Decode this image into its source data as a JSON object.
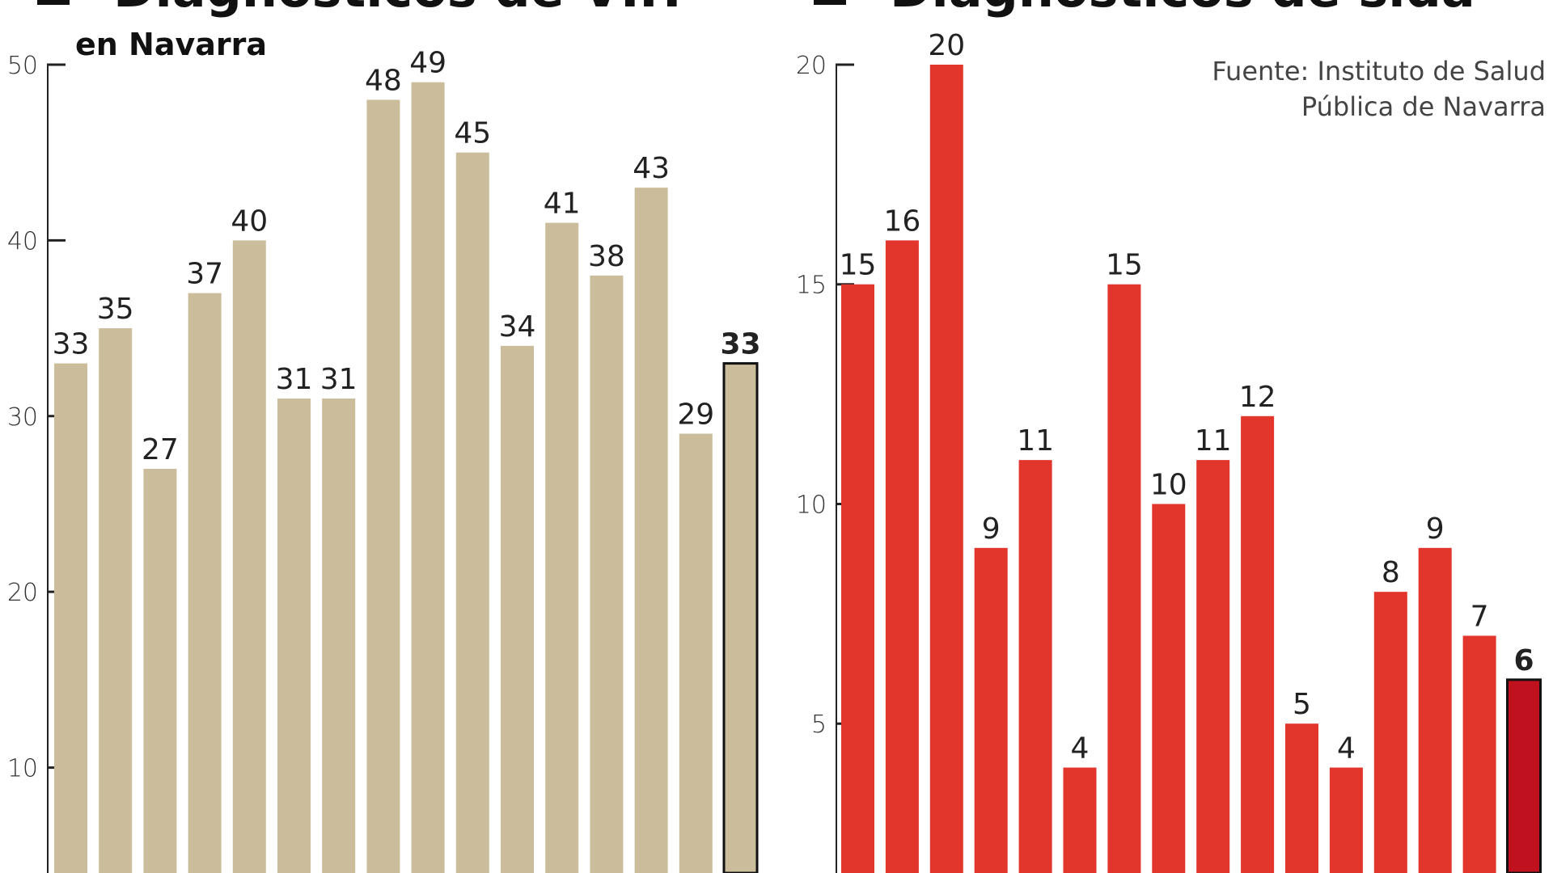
{
  "chart_data": [
    {
      "type": "bar",
      "title": "Diagnósticos de VIH",
      "subtitle": "en Navarra",
      "values": [
        33,
        35,
        27,
        37,
        40,
        31,
        31,
        48,
        49,
        45,
        34,
        41,
        38,
        43,
        29,
        33
      ],
      "color": "#cbbc9b",
      "highlight_color": "#cbbc9b",
      "highlight_stroke": "#111111",
      "ylim": [
        4,
        50
      ],
      "yticks": [
        10,
        20,
        30,
        40,
        50
      ]
    },
    {
      "type": "bar",
      "title": "Diagnósticos de sida",
      "source": [
        "Fuente: Instituto de Salud",
        "Pública de Navarra"
      ],
      "values": [
        15,
        16,
        20,
        9,
        11,
        4,
        15,
        10,
        11,
        12,
        5,
        4,
        8,
        9,
        7,
        6
      ],
      "color": "#e2352b",
      "highlight_color": "#c0111f",
      "highlight_stroke": "#111111",
      "ylim": [
        1.6,
        20
      ],
      "yticks": [
        5,
        10,
        15,
        20
      ]
    }
  ]
}
